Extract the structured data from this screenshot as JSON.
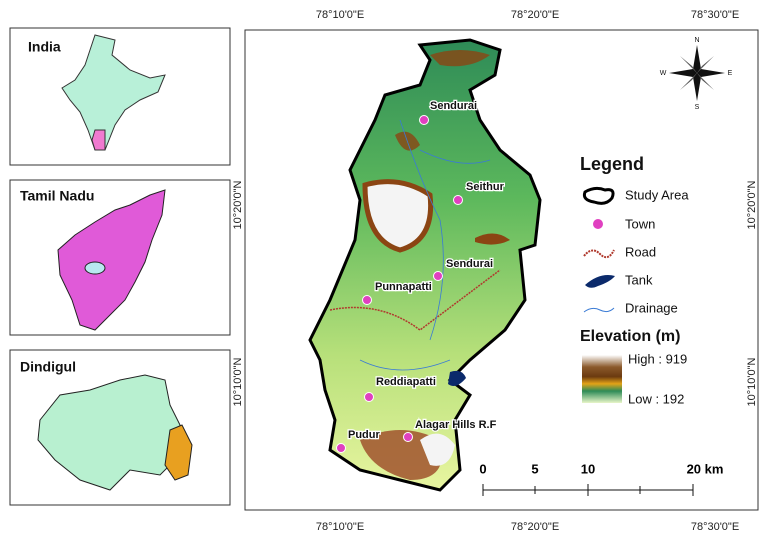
{
  "insets": [
    {
      "label": "India"
    },
    {
      "label": "Tamil Nadu"
    },
    {
      "label": "Dindigul"
    }
  ],
  "map": {
    "top_labels": [
      "78°10'0\"E",
      "78°20'0\"E",
      "78°30'0\"E"
    ],
    "bottom_labels": [
      "78°10'0\"E",
      "78°20'0\"E",
      "78°30'0\"E"
    ],
    "left_labels": [
      "10°20'0\"N",
      "10°10'0\"N"
    ],
    "right_labels": [
      "10°20'0\"N",
      "10°10'0\"N"
    ],
    "towns": [
      {
        "name": "Sendurai"
      },
      {
        "name": "Seithur"
      },
      {
        "name": "Sendurai"
      },
      {
        "name": "Punnapatti"
      },
      {
        "name": "Reddiapatti"
      },
      {
        "name": "Alagar Hills R.F"
      },
      {
        "name": "Pudur"
      }
    ],
    "compass": {
      "n": "N",
      "e": "E",
      "s": "S",
      "w": "W"
    }
  },
  "legend": {
    "title": "Legend",
    "items": [
      "Study Area",
      "Town",
      "Road",
      "Tank",
      "Drainage"
    ],
    "elevation_title": "Elevation (m)",
    "high": "High : 919",
    "low": "Low : 192"
  },
  "scale": {
    "labels": [
      "0",
      "5",
      "10",
      "20 km"
    ]
  }
}
